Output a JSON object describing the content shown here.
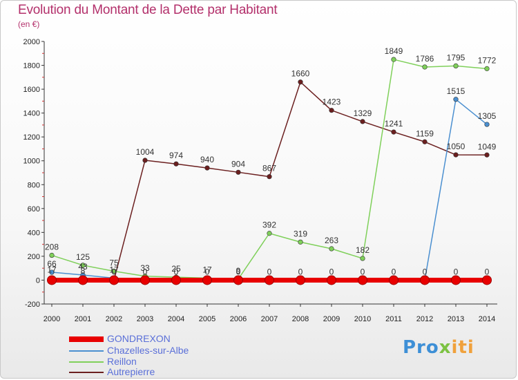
{
  "chart_data": {
    "type": "line",
    "title": "Evolution du Montant de la Dette par Habitant",
    "subtitle": "(en €)",
    "xlabel": "",
    "ylabel": "",
    "ylim": [
      -200,
      2000
    ],
    "yticks": [
      -200,
      0,
      200,
      400,
      600,
      800,
      1000,
      1200,
      1400,
      1600,
      1800,
      2000
    ],
    "x": [
      "2000",
      "2001",
      "2002",
      "2003",
      "2004",
      "2005",
      "2006",
      "2007",
      "2008",
      "2009",
      "2010",
      "2011",
      "2012",
      "2013",
      "2014"
    ],
    "grid": false,
    "legend": "bottom-left",
    "series": [
      {
        "name": "GONDREXON",
        "color": "#e80000",
        "values": [
          0,
          0,
          0,
          0,
          0,
          0,
          0,
          0,
          0,
          0,
          0,
          0,
          0,
          0,
          0
        ],
        "labels": [
          "",
          "",
          "",
          "",
          "",
          "",
          "",
          "",
          "",
          "",
          "",
          "",
          "",
          "0",
          "0"
        ]
      },
      {
        "name": "Chazelles-sur-Albe",
        "color": "#4a8fd0",
        "values": [
          66,
          43,
          17,
          0,
          0,
          0,
          0,
          0,
          0,
          0,
          0,
          0,
          0,
          1515,
          1305
        ],
        "labels": [
          "66",
          "43",
          "17",
          "0",
          "0",
          "0",
          "0",
          "0",
          "0",
          "0",
          "0",
          "0",
          "0",
          "1515",
          "1305"
        ]
      },
      {
        "name": "Reillon",
        "color": "#7fd05a",
        "values": [
          208,
          125,
          75,
          33,
          25,
          17,
          9,
          392,
          319,
          263,
          182,
          1849,
          1786,
          1795,
          1772
        ],
        "labels": [
          "208",
          "125",
          "75",
          "33",
          "25",
          "17",
          "9",
          "392",
          "319",
          "263",
          "182",
          "1849",
          "1786",
          "1795",
          "1772"
        ]
      },
      {
        "name": "Autrepierre",
        "color": "#6b1f1f",
        "values": [
          17,
          8,
          0,
          1004,
          974,
          940,
          904,
          867,
          1660,
          1423,
          1329,
          1241,
          1159,
          1050,
          1049
        ],
        "labels": [
          "17",
          "8",
          "0",
          "1004",
          "974",
          "940",
          "904",
          "867",
          "1660",
          "1423",
          "1329",
          "1241",
          "1159",
          "1050",
          "1049"
        ]
      }
    ]
  },
  "logo": {
    "part1": "Pro",
    "part2": "x",
    "part3": "iti"
  }
}
